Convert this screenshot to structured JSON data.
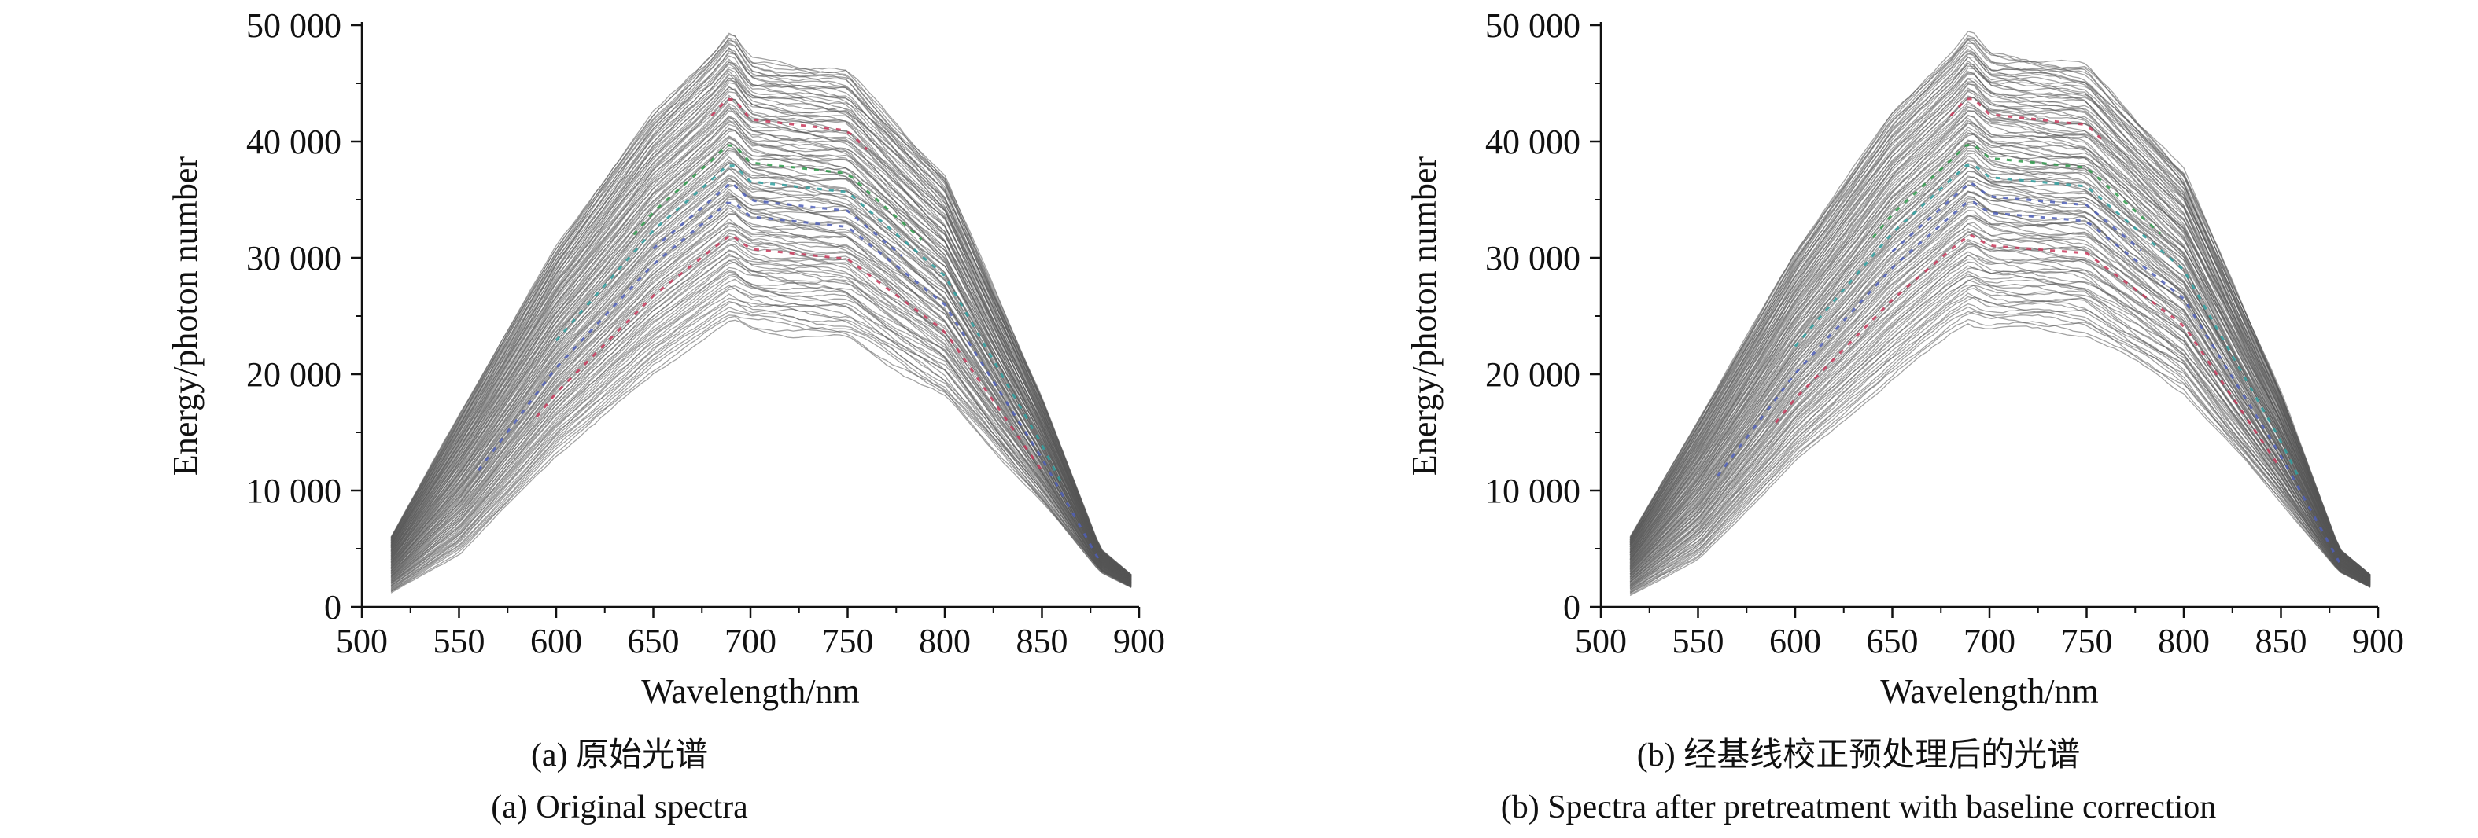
{
  "chart_data": [
    {
      "type": "line",
      "panel": "a",
      "caption_cn": "(a) 原始光谱",
      "caption_en": "(a) Original spectra",
      "xlabel": "Wavelength/nm",
      "ylabel": "Energy/photon number",
      "xlim": [
        500,
        900
      ],
      "ylim": [
        0,
        50000
      ],
      "xticks": [
        500,
        550,
        600,
        650,
        700,
        750,
        800,
        850,
        900
      ],
      "yticks": [
        0,
        10000,
        20000,
        30000,
        40000,
        50000
      ],
      "xtick_labels": [
        "500",
        "550",
        "600",
        "650",
        "700",
        "750",
        "800",
        "850",
        "900"
      ],
      "ytick_labels": [
        "0",
        "10 000",
        "20 000",
        "30 000",
        "40 000",
        "50 000"
      ],
      "data_range_x": [
        515,
        898
      ],
      "envelope": {
        "x": [
          515,
          550,
          600,
          650,
          680,
          690,
          700,
          750,
          800,
          850,
          880,
          898
        ],
        "upper": [
          6000,
          16500,
          31000,
          42500,
          47500,
          49500,
          47000,
          46000,
          37000,
          18000,
          5000,
          2500
        ],
        "lower": [
          1200,
          4500,
          13000,
          20000,
          23500,
          24500,
          23800,
          23000,
          18000,
          9000,
          3000,
          1500
        ]
      },
      "series_count_approx": 120,
      "line_color": "#555555",
      "highlight_colors": [
        "#4f5fb8",
        "#2fa0a0",
        "#c8385a",
        "#2e9a4a"
      ]
    },
    {
      "type": "line",
      "panel": "b",
      "caption_cn": "(b) 经基线校正预处理后的光谱",
      "caption_en": "(b) Spectra after pretreatment with baseline correction",
      "xlabel": "Wavelength/nm",
      "ylabel": "Energy/photon number",
      "xlim": [
        500,
        900
      ],
      "ylim": [
        0,
        50000
      ],
      "xticks": [
        500,
        550,
        600,
        650,
        700,
        750,
        800,
        850,
        900
      ],
      "yticks": [
        0,
        10000,
        20000,
        30000,
        40000,
        50000
      ],
      "xtick_labels": [
        "500",
        "550",
        "600",
        "650",
        "700",
        "750",
        "800",
        "850",
        "900"
      ],
      "ytick_labels": [
        "0",
        "10 000",
        "20 000",
        "30 000",
        "40 000",
        "50 000"
      ],
      "data_range_x": [
        515,
        898
      ],
      "envelope": {
        "x": [
          515,
          550,
          600,
          650,
          680,
          690,
          700,
          750,
          800,
          850,
          880,
          898
        ],
        "upper": [
          6000,
          16000,
          30500,
          42500,
          47500,
          49500,
          47500,
          46500,
          37500,
          18500,
          5000,
          2500
        ],
        "lower": [
          1000,
          4000,
          12500,
          19500,
          23500,
          24500,
          24000,
          23500,
          18500,
          9000,
          3000,
          1500
        ]
      },
      "series_count_approx": 120,
      "line_color": "#555555",
      "highlight_colors": [
        "#4f5fb8",
        "#2fa0a0",
        "#c8385a",
        "#2e9a4a"
      ]
    }
  ]
}
